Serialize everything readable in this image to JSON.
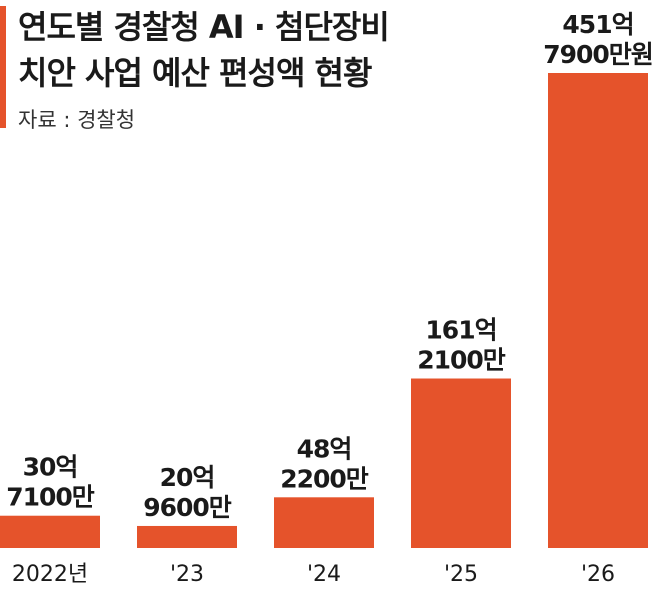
{
  "chart_data": {
    "type": "bar",
    "title_lines": [
      "연도별 경찰청 AI · 첨단장비",
      "치안 사업 예산 편성액 현황"
    ],
    "source": "자료 : 경찰청",
    "categories": [
      "2022년",
      "'23",
      "'24",
      "'25",
      "'26"
    ],
    "values": [
      30.71,
      20.96,
      48.22,
      161.21,
      451.79
    ],
    "value_unit": "억원",
    "value_labels": [
      [
        "30억",
        "7100만"
      ],
      [
        "20억",
        "9600만"
      ],
      [
        "48억",
        "2200만"
      ],
      [
        "161억",
        "2100만"
      ],
      [
        "451억",
        "7900만원"
      ]
    ],
    "bar_color": "#e5532b",
    "grid": false
  }
}
